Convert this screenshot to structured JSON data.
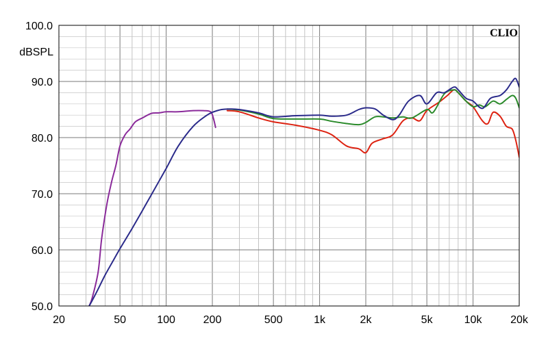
{
  "chart_data": {
    "type": "line",
    "brand": "CLIO",
    "ylabel": "dBSPL",
    "xscale": "log",
    "xlim": [
      20,
      20000
    ],
    "ylim": [
      50,
      100
    ],
    "grid": true,
    "y_ticks": [
      {
        "value": 100,
        "label": "100.0"
      },
      {
        "value": 90,
        "label": "90.0"
      },
      {
        "value": 80,
        "label": "80.0"
      },
      {
        "value": 70,
        "label": "70.0"
      },
      {
        "value": 60,
        "label": "60.0"
      },
      {
        "value": 50,
        "label": "50.0"
      }
    ],
    "x_ticks": [
      {
        "value": 20,
        "label": "20"
      },
      {
        "value": 50,
        "label": "50"
      },
      {
        "value": 100,
        "label": "100"
      },
      {
        "value": 200,
        "label": "200"
      },
      {
        "value": 500,
        "label": "500"
      },
      {
        "value": 1000,
        "label": "1k"
      },
      {
        "value": 2000,
        "label": "2k"
      },
      {
        "value": 5000,
        "label": "5k"
      },
      {
        "value": 10000,
        "label": "10k"
      },
      {
        "value": 20000,
        "label": "20k"
      }
    ],
    "series": [
      {
        "color": "#8a2a9a",
        "x": [
          31.5,
          33,
          36,
          38,
          41,
          44,
          47,
          50,
          54,
          58,
          63,
          70,
          80,
          90,
          100,
          120,
          150,
          175,
          195,
          203,
          210
        ],
        "y": [
          50,
          51.5,
          56,
          62,
          68,
          72,
          75,
          78.5,
          80.5,
          81.5,
          82.8,
          83.5,
          84.3,
          84.4,
          84.6,
          84.6,
          84.8,
          84.8,
          84.6,
          83.5,
          81.8
        ]
      },
      {
        "color": "#dd2211",
        "x": [
          250,
          300,
          400,
          500,
          700,
          1000,
          1200,
          1500,
          1800,
          2000,
          2200,
          2600,
          3000,
          3500,
          4000,
          4500,
          5000,
          6000,
          6800,
          7500,
          8000,
          9000,
          10000,
          11500,
          12500,
          13500,
          15000,
          16500,
          18000,
          19000,
          20000
        ],
        "y": [
          84.8,
          84.6,
          83.5,
          82.8,
          82.2,
          81.3,
          80.5,
          78.5,
          78.0,
          77.3,
          79.0,
          79.8,
          80.5,
          83.0,
          83.5,
          83.0,
          84.8,
          86.3,
          87.5,
          88.5,
          88.0,
          86.5,
          85.5,
          83.0,
          82.5,
          84.5,
          83.8,
          82.0,
          81.5,
          79.5,
          76.5
        ]
      },
      {
        "color": "#2a8a2a",
        "x": [
          250,
          300,
          400,
          500,
          700,
          1000,
          1200,
          1500,
          1800,
          2000,
          2300,
          2600,
          3000,
          3500,
          4000,
          5000,
          5500,
          6500,
          7500,
          8000,
          9000,
          10000,
          11000,
          12000,
          13500,
          15000,
          16500,
          18000,
          19000,
          20000
        ],
        "y": [
          85.1,
          84.9,
          84.2,
          83.4,
          83.3,
          83.3,
          82.9,
          82.5,
          82.3,
          82.7,
          83.7,
          83.7,
          83.5,
          83.7,
          83.5,
          85.0,
          84.5,
          87.8,
          88.5,
          88.0,
          86.5,
          85.5,
          85.8,
          85.5,
          86.5,
          86.0,
          86.8,
          87.5,
          87.0,
          85.3
        ]
      },
      {
        "color": "#2a2a8a",
        "x": [
          31.5,
          33,
          36,
          40,
          45,
          50,
          60,
          70,
          80,
          100,
          120,
          150,
          180,
          200,
          230,
          260,
          300,
          400,
          500,
          700,
          1000,
          1200,
          1500,
          1800,
          2000,
          2300,
          2600,
          3000,
          3300,
          3800,
          4500,
          5000,
          5800,
          6500,
          7500,
          8000,
          9000,
          10000,
          11500,
          13000,
          15000,
          16500,
          18000,
          19000,
          20000
        ],
        "y": [
          50,
          51.0,
          53.0,
          55.5,
          58.0,
          60.2,
          63.8,
          67.0,
          69.8,
          74.5,
          78.5,
          82.0,
          83.8,
          84.5,
          85.0,
          85.1,
          85.0,
          84.4,
          83.7,
          83.9,
          84.0,
          83.8,
          84.0,
          85.0,
          85.3,
          85.1,
          84.0,
          83.2,
          84.0,
          86.5,
          87.5,
          86.0,
          88.0,
          88.0,
          89.0,
          88.5,
          87.0,
          86.5,
          85.2,
          87.0,
          87.5,
          88.5,
          90.0,
          90.5,
          89.0
        ]
      }
    ]
  }
}
